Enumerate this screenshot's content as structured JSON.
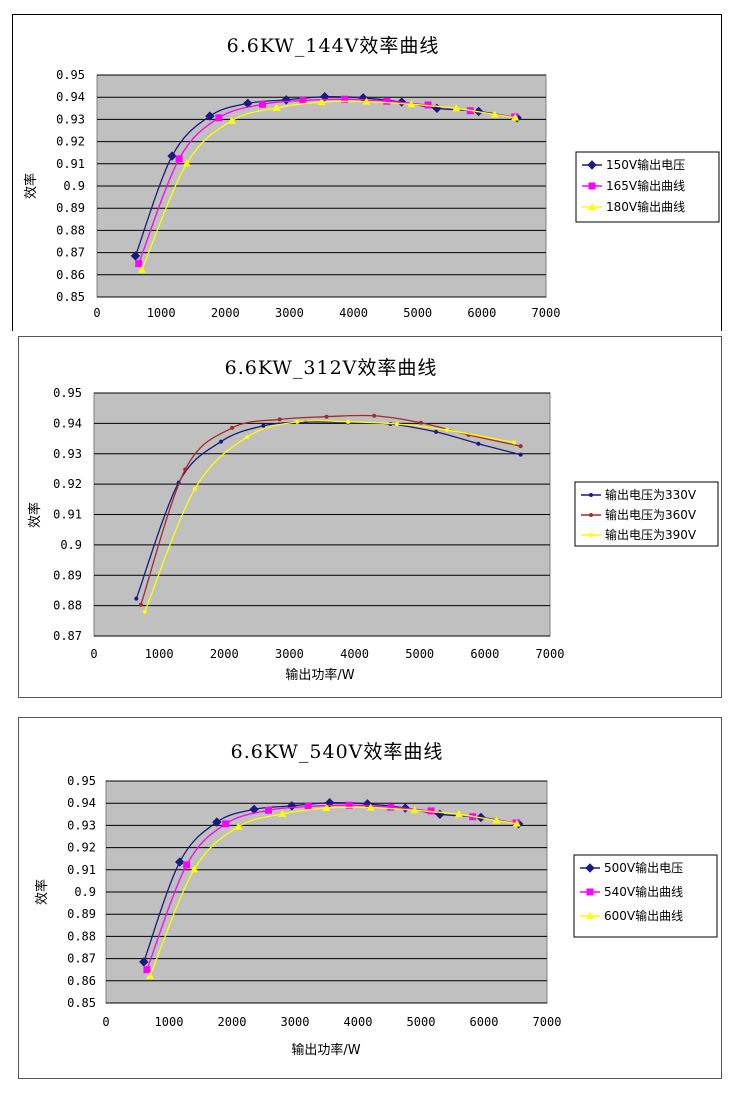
{
  "chart_data": [
    {
      "type": "line",
      "title": "6.6KW_144V效率曲线",
      "xlabel": "",
      "ylabel": "效率",
      "xlim": [
        0,
        7000
      ],
      "ylim": [
        0.85,
        0.95
      ],
      "xticks": [
        "0",
        "1000",
        "2000",
        "3000",
        "4000",
        "5000",
        "6000",
        "7000"
      ],
      "yticks": [
        "0.85",
        "0.86",
        "0.87",
        "0.88",
        "0.89",
        "0.9",
        "0.91",
        "0.92",
        "0.93",
        "0.94",
        "0.95"
      ],
      "grid": "horizontal",
      "legend": "right",
      "series": [
        {
          "name": "150V输出电压",
          "color": "#1a1a80",
          "marker": "diamond",
          "x": [
            600,
            1170,
            1760,
            2350,
            2950,
            3550,
            4150,
            4750,
            5300,
            5950,
            6550
          ],
          "y": [
            0.8685,
            0.9135,
            0.9315,
            0.9372,
            0.9388,
            0.9402,
            0.9397,
            0.9378,
            0.935,
            0.9336,
            0.9307
          ]
        },
        {
          "name": "165V输出曲线",
          "color": "#ff00ff",
          "marker": "square",
          "x": [
            650,
            1280,
            1900,
            2580,
            3210,
            3860,
            4520,
            5160,
            5820,
            6510
          ],
          "y": [
            0.865,
            0.9122,
            0.9307,
            0.9368,
            0.9385,
            0.9391,
            0.9382,
            0.9365,
            0.9339,
            0.9311
          ]
        },
        {
          "name": "180V输出曲线",
          "color": "#ffff00",
          "marker": "triangle",
          "x": [
            700,
            1400,
            2100,
            2800,
            3500,
            4200,
            4900,
            5600,
            6200,
            6520
          ],
          "y": [
            0.8622,
            0.9102,
            0.9294,
            0.9352,
            0.9378,
            0.938,
            0.9368,
            0.935,
            0.9322,
            0.9308
          ]
        }
      ]
    },
    {
      "type": "line",
      "title": "6.6KW_312V效率曲线",
      "xlabel": "输出功率/W",
      "ylabel": "效率",
      "xlim": [
        0,
        7000
      ],
      "ylim": [
        0.87,
        0.95
      ],
      "xticks": [
        "0",
        "1000",
        "2000",
        "3000",
        "4000",
        "5000",
        "6000",
        "7000"
      ],
      "yticks": [
        "0.87",
        "0.88",
        "0.89",
        "0.9",
        "0.91",
        "0.92",
        "0.93",
        "0.94",
        "0.95"
      ],
      "grid": "horizontal",
      "legend": "right",
      "series": [
        {
          "name": "输出电压为330V",
          "color": "#1a1a80",
          "marker": "dot",
          "x": [
            650,
            1300,
            1950,
            2600,
            3250,
            3900,
            4550,
            5250,
            5900,
            6550
          ],
          "y": [
            0.8823,
            0.9205,
            0.934,
            0.9392,
            0.9405,
            0.9403,
            0.9398,
            0.9372,
            0.9333,
            0.9297
          ]
        },
        {
          "name": "输出电压为360V",
          "color": "#a52a2a",
          "marker": "dot",
          "x": [
            720,
            1400,
            2120,
            2850,
            3570,
            4300,
            5020,
            5750,
            6550
          ],
          "y": [
            0.8803,
            0.9248,
            0.9385,
            0.9413,
            0.9422,
            0.9425,
            0.9402,
            0.9362,
            0.9325
          ]
        },
        {
          "name": "输出电压为390V",
          "color": "#ffff00",
          "marker": "dot",
          "x": [
            780,
            1550,
            2350,
            3120,
            3900,
            4650,
            5420,
            6450
          ],
          "y": [
            0.878,
            0.9185,
            0.9355,
            0.9405,
            0.9405,
            0.9398,
            0.9378,
            0.9337
          ]
        }
      ]
    },
    {
      "type": "line",
      "title": "6.6KW_540V效率曲线",
      "xlabel": "输出功率/W",
      "ylabel": "效率",
      "xlim": [
        0,
        7000
      ],
      "ylim": [
        0.85,
        0.95
      ],
      "xticks": [
        "0",
        "1000",
        "2000",
        "3000",
        "4000",
        "5000",
        "6000",
        "7000"
      ],
      "yticks": [
        "0.85",
        "0.86",
        "0.87",
        "0.88",
        "0.89",
        "0.9",
        "0.91",
        "0.92",
        "0.93",
        "0.94",
        "0.95"
      ],
      "grid": "horizontal",
      "legend": "right",
      "series": [
        {
          "name": "500V输出电压",
          "color": "#1a1a80",
          "marker": "diamond",
          "x": [
            600,
            1170,
            1760,
            2350,
            2950,
            3550,
            4150,
            4750,
            5300,
            5950,
            6550
          ],
          "y": [
            0.8685,
            0.9135,
            0.9315,
            0.9372,
            0.9388,
            0.9402,
            0.9397,
            0.9378,
            0.935,
            0.9336,
            0.9307
          ]
        },
        {
          "name": "540V输出曲线",
          "color": "#ff00ff",
          "marker": "square",
          "x": [
            650,
            1280,
            1900,
            2580,
            3210,
            3860,
            4520,
            5160,
            5820,
            6510
          ],
          "y": [
            0.865,
            0.9122,
            0.9307,
            0.9368,
            0.9385,
            0.9391,
            0.9382,
            0.9365,
            0.9339,
            0.9311
          ]
        },
        {
          "name": "600V输出曲线",
          "color": "#ffff00",
          "marker": "triangle",
          "x": [
            700,
            1400,
            2100,
            2800,
            3500,
            4200,
            4900,
            5600,
            6200,
            6520
          ],
          "y": [
            0.8622,
            0.9102,
            0.9294,
            0.9352,
            0.9378,
            0.938,
            0.9368,
            0.935,
            0.9322,
            0.9308
          ]
        }
      ]
    }
  ]
}
